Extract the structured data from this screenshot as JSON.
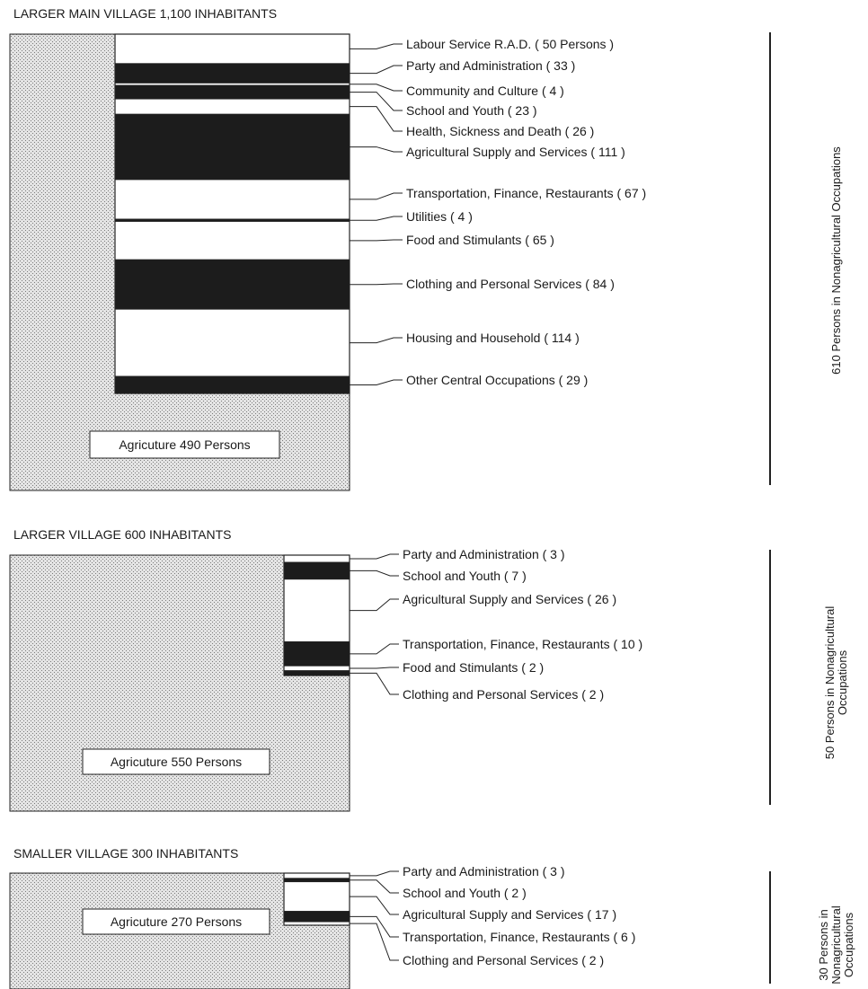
{
  "colors": {
    "agriculture_fill": "#cfcfcf",
    "dark_band": "#1c1c1c",
    "white_band": "#ffffff",
    "line": "#222222"
  },
  "villages": [
    {
      "title": "LARGER MAIN VILLAGE 1,100 INHABITANTS",
      "agriculture_label": "Agricuture 490 Persons",
      "agriculture_persons": 490,
      "side_label": [
        "610 Persons in Nonagricultural Occupations"
      ],
      "categories": [
        {
          "label": "Labour Service R.A.D. ( 50 Persons )",
          "persons": 50,
          "shade": "white"
        },
        {
          "label": "Party and Administration ( 33 )",
          "persons": 33,
          "shade": "dark"
        },
        {
          "label": "Community and Culture ( 4 )",
          "persons": 4,
          "shade": "white"
        },
        {
          "label": "School and Youth ( 23 )",
          "persons": 23,
          "shade": "dark"
        },
        {
          "label": "Health, Sickness and Death ( 26 )",
          "persons": 26,
          "shade": "white"
        },
        {
          "label": "Agricultural Supply and Services ( 111 )",
          "persons": 111,
          "shade": "dark"
        },
        {
          "label": "Transportation, Finance, Restaurants ( 67 )",
          "persons": 67,
          "shade": "white"
        },
        {
          "label": "Utilities ( 4 )",
          "persons": 4,
          "shade": "dark"
        },
        {
          "label": "Food and Stimulants ( 65 )",
          "persons": 65,
          "shade": "white"
        },
        {
          "label": "Clothing and Personal Services ( 84 )",
          "persons": 84,
          "shade": "dark"
        },
        {
          "label": "Housing and Household ( 114 )",
          "persons": 114,
          "shade": "white"
        },
        {
          "label": "Other Central Occupations ( 29 )",
          "persons": 29,
          "shade": "dark"
        }
      ]
    },
    {
      "title": "LARGER VILLAGE 600 INHABITANTS",
      "agriculture_label": "Agricuture 550 Persons",
      "agriculture_persons": 550,
      "side_label": [
        "50 Persons in Nonagricultural",
        "Occupations"
      ],
      "categories": [
        {
          "label": "Party and Administration ( 3 )",
          "persons": 3,
          "shade": "white"
        },
        {
          "label": "School and Youth ( 7 )",
          "persons": 7,
          "shade": "dark"
        },
        {
          "label": "Agricultural Supply and Services ( 26 )",
          "persons": 26,
          "shade": "white"
        },
        {
          "label": "Transportation, Finance, Restaurants ( 10 )",
          "persons": 10,
          "shade": "dark"
        },
        {
          "label": "Food and Stimulants ( 2 )",
          "persons": 2,
          "shade": "white"
        },
        {
          "label": "Clothing and Personal Services ( 2 )",
          "persons": 2,
          "shade": "dark"
        }
      ]
    },
    {
      "title": "SMALLER VILLAGE 300 INHABITANTS",
      "agriculture_label": "Agricuture 270 Persons",
      "agriculture_persons": 270,
      "side_label": [
        "30 Persons in",
        "Nonagricultural",
        "Occupations"
      ],
      "categories": [
        {
          "label": "Party and Administration ( 3 )",
          "persons": 3,
          "shade": "white"
        },
        {
          "label": "School and Youth ( 2 )",
          "persons": 2,
          "shade": "dark"
        },
        {
          "label": "Agricultural Supply and Services ( 17 )",
          "persons": 17,
          "shade": "white"
        },
        {
          "label": "Transportation, Finance, Restaurants ( 6 )",
          "persons": 6,
          "shade": "dark"
        },
        {
          "label": "Clothing and Personal Services ( 2 )",
          "persons": 2,
          "shade": "white"
        }
      ]
    }
  ]
}
